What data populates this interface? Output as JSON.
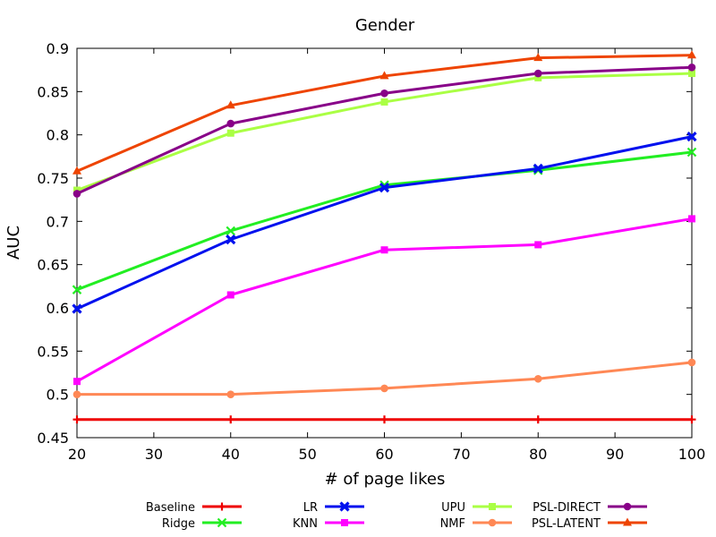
{
  "chart_data": {
    "type": "line",
    "title": "Gender",
    "xlabel": "# of page likes",
    "ylabel": "AUC",
    "xlim": [
      20,
      100
    ],
    "ylim": [
      0.45,
      0.9
    ],
    "x_ticks": [
      20,
      30,
      40,
      50,
      60,
      70,
      80,
      90,
      100
    ],
    "x_tick_labels": [
      "20",
      "30",
      "40",
      "50",
      "60",
      "70",
      "80",
      "90",
      "100"
    ],
    "y_ticks": [
      0.45,
      0.5,
      0.55,
      0.6,
      0.65,
      0.7,
      0.75,
      0.8,
      0.85,
      0.9
    ],
    "y_tick_labels": [
      "0.45",
      "0.5",
      "0.55",
      "0.6",
      "0.65",
      "0.7",
      "0.75",
      "0.8",
      "0.85",
      "0.9"
    ],
    "grid": false,
    "legend_position": "bottom",
    "x": [
      20,
      40,
      60,
      80,
      100
    ],
    "series": [
      {
        "name": "Baseline",
        "color": "#ee0000",
        "marker": "plus",
        "values": [
          0.471,
          0.471,
          0.471,
          0.471,
          0.471
        ]
      },
      {
        "name": "Ridge",
        "color": "#22ee22",
        "marker": "x",
        "values": [
          0.621,
          0.689,
          0.742,
          0.759,
          0.78
        ]
      },
      {
        "name": "LR",
        "color": "#0011ee",
        "marker": "filled-x",
        "values": [
          0.599,
          0.679,
          0.739,
          0.761,
          0.798
        ]
      },
      {
        "name": "KNN",
        "color": "#ff00ff",
        "marker": "square",
        "values": [
          0.515,
          0.615,
          0.667,
          0.673,
          0.703
        ]
      },
      {
        "name": "UPU",
        "color": "#aaff44",
        "marker": "square",
        "values": [
          0.736,
          0.802,
          0.838,
          0.866,
          0.871
        ]
      },
      {
        "name": "NMF",
        "color": "#ff8855",
        "marker": "circle",
        "values": [
          0.5,
          0.5,
          0.507,
          0.518,
          0.537
        ]
      },
      {
        "name": "PSL-DIRECT",
        "color": "#880088",
        "marker": "circle",
        "values": [
          0.732,
          0.813,
          0.848,
          0.871,
          0.878
        ]
      },
      {
        "name": "PSL-LATENT",
        "color": "#ee4400",
        "marker": "triangle",
        "values": [
          0.758,
          0.834,
          0.868,
          0.889,
          0.892
        ]
      }
    ]
  }
}
